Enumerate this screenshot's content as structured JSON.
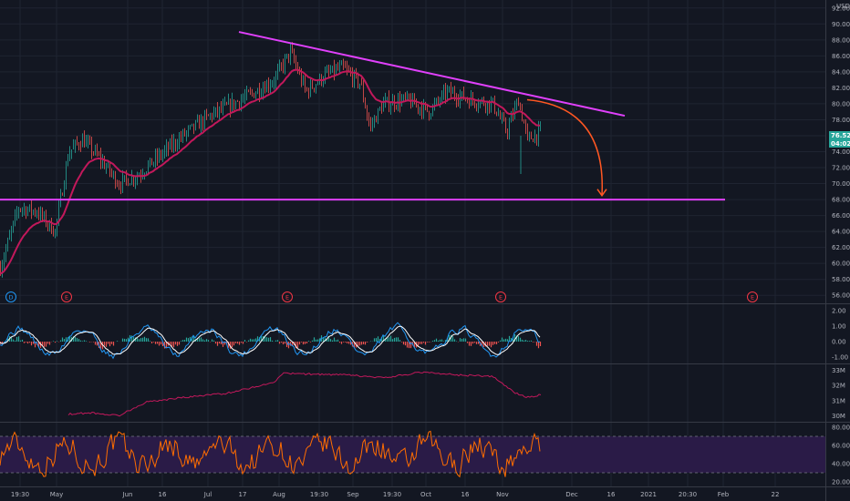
{
  "chart_data": [
    {
      "type": "candlestick",
      "panel": "price",
      "currency": "USD",
      "ylim": [
        55,
        93
      ],
      "y_ticks": [
        "56.00",
        "58.00",
        "60.00",
        "62.00",
        "64.00",
        "66.00",
        "68.00",
        "70.00",
        "72.00",
        "74.00",
        "76.00",
        "78.00",
        "80.00",
        "82.00",
        "84.00",
        "86.00",
        "88.00",
        "90.00",
        "92.00"
      ],
      "x_ticks": [
        "19:30",
        "May",
        "Jun",
        "16",
        "Jul",
        "17",
        "Aug",
        "19:30",
        "Sep",
        "19:30",
        "Oct",
        "16",
        "Nov",
        "Dec",
        "16",
        "2021",
        "20:30",
        "Feb",
        "22"
      ],
      "last_price_label": "76.52",
      "countdown_label": "04:02",
      "price_path_anchors": [
        {
          "t": 0,
          "v": 59.5
        },
        {
          "t": 20,
          "v": 67.0
        },
        {
          "t": 40,
          "v": 66.5
        },
        {
          "t": 60,
          "v": 64.0
        },
        {
          "t": 75,
          "v": 74.0
        },
        {
          "t": 90,
          "v": 75.5
        },
        {
          "t": 110,
          "v": 73.0
        },
        {
          "t": 130,
          "v": 70.0
        },
        {
          "t": 150,
          "v": 71.0
        },
        {
          "t": 175,
          "v": 73.5
        },
        {
          "t": 200,
          "v": 76.0
        },
        {
          "t": 230,
          "v": 78.5
        },
        {
          "t": 255,
          "v": 80.0
        },
        {
          "t": 280,
          "v": 81.5
        },
        {
          "t": 300,
          "v": 83.0
        },
        {
          "t": 318,
          "v": 86.5
        },
        {
          "t": 335,
          "v": 81.5
        },
        {
          "t": 355,
          "v": 83.5
        },
        {
          "t": 375,
          "v": 84.5
        },
        {
          "t": 395,
          "v": 82.5
        },
        {
          "t": 405,
          "v": 77.0
        },
        {
          "t": 420,
          "v": 80.0
        },
        {
          "t": 445,
          "v": 80.5
        },
        {
          "t": 470,
          "v": 79.0
        },
        {
          "t": 490,
          "v": 81.5
        },
        {
          "t": 515,
          "v": 80.5
        },
        {
          "t": 540,
          "v": 80.0
        },
        {
          "t": 555,
          "v": 76.5
        },
        {
          "t": 568,
          "v": 80.5
        },
        {
          "t": 578,
          "v": 75.5
        },
        {
          "t": 593,
          "v": 76.5
        }
      ],
      "moving_average_color": "#c2185b",
      "candle_up_color": "#26a69a",
      "candle_down_color": "#ef5350",
      "annotations": [
        {
          "type": "trendline",
          "from": {
            "t": 262,
            "v": 89.0
          },
          "to": {
            "t": 685,
            "v": 78.5
          },
          "color": "#e040fb"
        },
        {
          "type": "horizontal_line",
          "v": 68.0,
          "from_t": 0,
          "to_t": 795,
          "color": "#e040fb"
        },
        {
          "type": "curved_arrow",
          "from": {
            "t": 578,
            "v": 80.5
          },
          "to": {
            "t": 660,
            "v": 68.5
          },
          "color": "#ff5722"
        }
      ],
      "event_markers": [
        {
          "t": 12,
          "label": "D",
          "color": "#2196f3"
        },
        {
          "t": 73,
          "label": "E",
          "color": "#f23645"
        },
        {
          "t": 315,
          "label": "E",
          "color": "#f23645"
        },
        {
          "t": 549,
          "label": "E",
          "color": "#f23645"
        },
        {
          "t": 825,
          "label": "E",
          "color": "#f23645"
        }
      ]
    },
    {
      "type": "line",
      "panel": "oscillator",
      "ylim": [
        -1.4,
        2.4
      ],
      "y_ticks": [
        "2.00",
        "1.00",
        "0.00",
        "-1.00"
      ],
      "series_colors": [
        "#2196f3",
        "#ffffff"
      ],
      "histogram_colors": [
        "#26a69a",
        "#ef5350"
      ]
    },
    {
      "type": "line",
      "panel": "volume_indicator",
      "ylim": [
        29.6,
        33.4
      ],
      "y_ticks": [
        "33M",
        "32M",
        "31M",
        "30M"
      ],
      "color": "#c2185b",
      "path_anchors": [
        {
          "t": 75,
          "v": 30.1
        },
        {
          "t": 100,
          "v": 30.2
        },
        {
          "t": 130,
          "v": 30.0
        },
        {
          "t": 160,
          "v": 30.9
        },
        {
          "t": 200,
          "v": 31.2
        },
        {
          "t": 250,
          "v": 31.5
        },
        {
          "t": 300,
          "v": 32.2
        },
        {
          "t": 310,
          "v": 32.8
        },
        {
          "t": 380,
          "v": 32.7
        },
        {
          "t": 420,
          "v": 32.5
        },
        {
          "t": 465,
          "v": 32.9
        },
        {
          "t": 500,
          "v": 32.7
        },
        {
          "t": 540,
          "v": 32.6
        },
        {
          "t": 565,
          "v": 31.5
        },
        {
          "t": 580,
          "v": 31.2
        },
        {
          "t": 593,
          "v": 31.4
        }
      ]
    },
    {
      "type": "line",
      "panel": "rsi",
      "ylim": [
        15,
        85
      ],
      "y_ticks": [
        "80.00",
        "60.00",
        "40.00",
        "20.00"
      ],
      "band": [
        30,
        70
      ],
      "color": "#ff6d00",
      "band_fill": "#2a1b47"
    }
  ]
}
